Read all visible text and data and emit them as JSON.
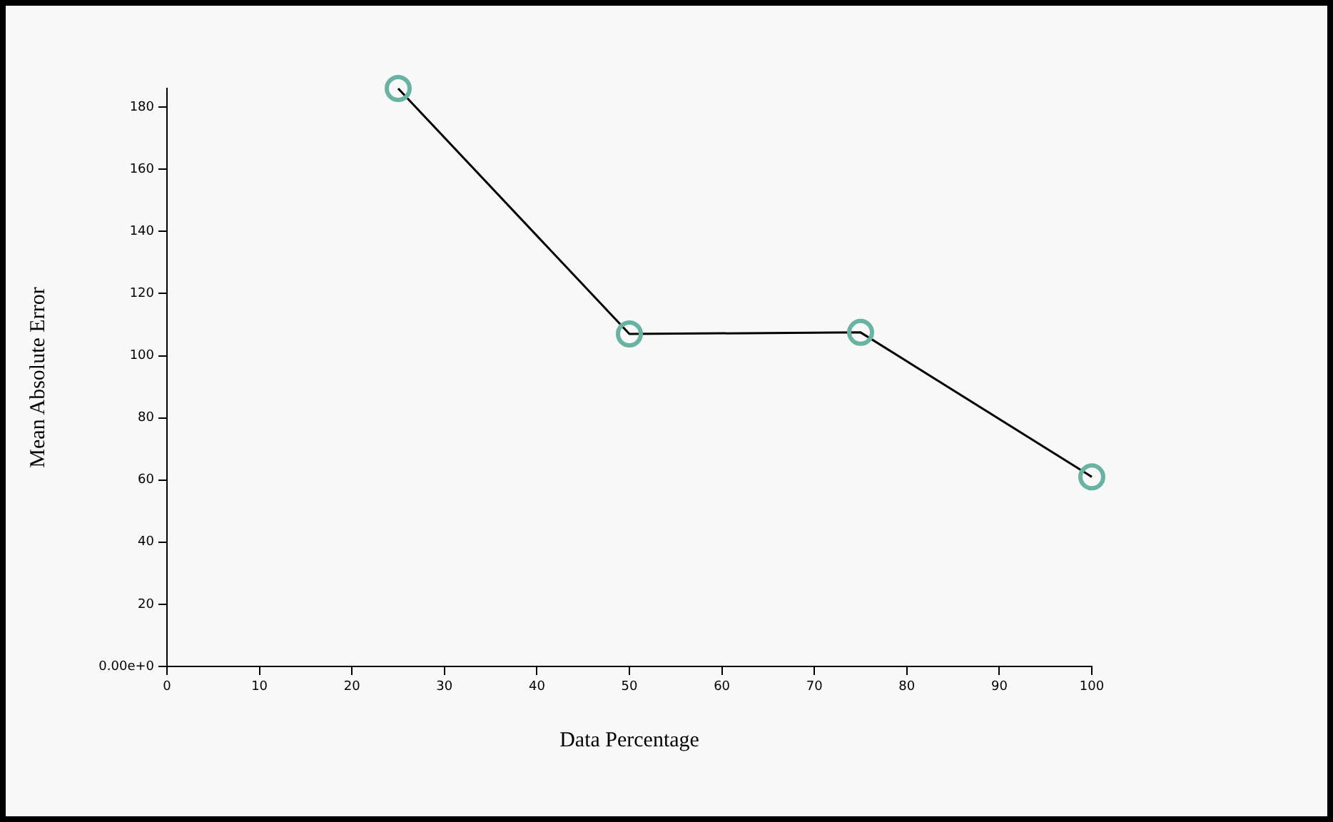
{
  "chart_data": {
    "type": "line",
    "xlabel": "Data Percentage",
    "ylabel": "Mean Absolute Error",
    "x": [
      25,
      50,
      75,
      100
    ],
    "series": [
      {
        "color": "#69b3a2",
        "values": [
          186,
          107,
          107.5,
          61
        ]
      }
    ],
    "xlim": [
      0,
      100
    ],
    "xticks": [
      0,
      10,
      20,
      30,
      40,
      50,
      60,
      70,
      80,
      90,
      100
    ],
    "ylim": [
      0,
      186
    ],
    "yticks": [
      {
        "value": 0,
        "label": "0.00e+0"
      },
      20,
      40,
      60,
      80,
      100,
      120,
      140,
      160,
      180
    ],
    "marker": "circle",
    "line_style": "solid",
    "grid": false,
    "legend": false
  }
}
